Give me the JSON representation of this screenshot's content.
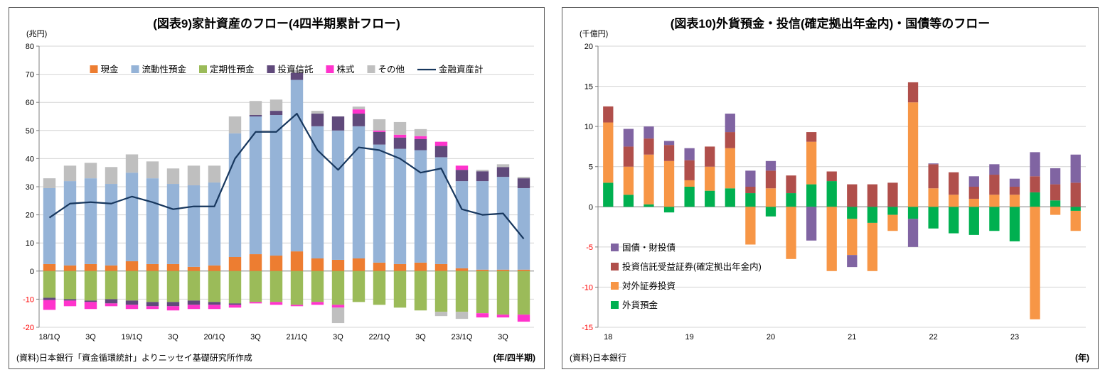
{
  "chart_data": [
    {
      "type": "bar",
      "title": "(図表9)家計資産のフロー(4四半期累計フロー)",
      "unit_label": "(兆円)",
      "x_axis_label": "(年/四半期)",
      "source": "(資料)日本銀行「資金循環統計」よりニッセイ基礎研究所作成",
      "ylim": [
        -20,
        80
      ],
      "ytick_step": 10,
      "grid": true,
      "legend_position": "top-inside",
      "negative_tick_color": "#FF0000",
      "categories": [
        "18/1Q",
        "18/2Q",
        "18/3Q",
        "18/4Q",
        "19/1Q",
        "19/2Q",
        "19/3Q",
        "19/4Q",
        "20/1Q",
        "20/2Q",
        "20/3Q",
        "20/4Q",
        "21/1Q",
        "21/2Q",
        "21/3Q",
        "21/4Q",
        "22/1Q",
        "22/2Q",
        "22/3Q",
        "22/4Q",
        "23/1Q",
        "23/2Q",
        "23/3Q",
        "23/4Q"
      ],
      "x_tick_labels": [
        {
          "index": 0,
          "label": "18/1Q"
        },
        {
          "index": 2,
          "label": "3Q"
        },
        {
          "index": 4,
          "label": "19/1Q"
        },
        {
          "index": 6,
          "label": "3Q"
        },
        {
          "index": 8,
          "label": "20/1Q"
        },
        {
          "index": 10,
          "label": "3Q"
        },
        {
          "index": 12,
          "label": "21/1Q"
        },
        {
          "index": 14,
          "label": "3Q"
        },
        {
          "index": 16,
          "label": "22/1Q"
        },
        {
          "index": 18,
          "label": "3Q"
        },
        {
          "index": 20,
          "label": "23/1Q"
        },
        {
          "index": 22,
          "label": "3Q"
        }
      ],
      "series": [
        {
          "key": "cash",
          "name": "現金",
          "color": "#ED7D31",
          "values": [
            2.5,
            2,
            2.5,
            2,
            3.5,
            2.5,
            2.5,
            1.5,
            2,
            5,
            6,
            5.5,
            7,
            4.5,
            4,
            4.5,
            3,
            2.5,
            3,
            2.5,
            1,
            0.5,
            0.5,
            0.5
          ]
        },
        {
          "key": "liquid-deposits",
          "name": "流動性預金",
          "color": "#95B3D7",
          "values": [
            27,
            30,
            30.5,
            29,
            31.5,
            30.5,
            28.5,
            29,
            29.5,
            44,
            49,
            50,
            61,
            47,
            46,
            47,
            42,
            41,
            40,
            38,
            31,
            31.5,
            33,
            29
          ]
        },
        {
          "key": "time-deposits",
          "name": "定期性預金",
          "color": "#9BBB59",
          "values": [
            -9.5,
            -10,
            -10.5,
            -10,
            -10.5,
            -11,
            -11,
            -10.5,
            -11,
            -11.5,
            -11,
            -11,
            -12,
            -11,
            -12,
            -11,
            -12,
            -13,
            -14,
            -14.5,
            -14.5,
            -15,
            -15.5,
            -15.5
          ]
        },
        {
          "key": "investment-trusts",
          "name": "投資信託",
          "color": "#604A7B",
          "values": [
            -0.8,
            -0.5,
            -0.5,
            -1.5,
            -1.5,
            -1.5,
            -1.5,
            -1.5,
            -1,
            -0.5,
            0.5,
            1.5,
            2.5,
            4.5,
            5,
            4.5,
            4.5,
            4,
            4,
            4,
            4,
            3.5,
            3.5,
            3.5
          ]
        },
        {
          "key": "stocks",
          "name": "株式",
          "color": "#FF33CC",
          "values": [
            -3.5,
            -2,
            -2.5,
            -1,
            -1.5,
            -1,
            -1.5,
            -1.5,
            -1.5,
            -1,
            -0.5,
            -1,
            -0.5,
            -1,
            -1,
            1.5,
            0.5,
            1,
            1,
            1.5,
            1.5,
            -1.5,
            -1,
            -2.5
          ]
        },
        {
          "key": "others",
          "name": "その他",
          "color": "#BFBFBF",
          "values": [
            3.5,
            5.5,
            5.5,
            6,
            6.5,
            6,
            5.5,
            7,
            6,
            6,
            5,
            4,
            1,
            1,
            -5.5,
            1,
            4,
            4.5,
            2.5,
            -1.5,
            -2.5,
            0.5,
            1,
            0.5
          ]
        }
      ],
      "line_series": {
        "key": "total-financial-assets",
        "name": "金融資産計",
        "color": "#17375E",
        "values": [
          19,
          24,
          24.5,
          24,
          26.5,
          24.5,
          22,
          23,
          23,
          40,
          49.5,
          49.5,
          56,
          43,
          36,
          44,
          43,
          40,
          35,
          36.5,
          22,
          20,
          20.5,
          11.5
        ]
      }
    },
    {
      "type": "bar",
      "title": "(図表10)外貨預金・投信(確定拠出年金内)・国債等のフロー",
      "unit_label": "(千億円)",
      "x_axis_label": "(年)",
      "source": "(資料)日本銀行",
      "ylim": [
        -15,
        20
      ],
      "ytick_step": 5,
      "grid": true,
      "legend_position": "left-inside",
      "negative_tick_color": "#FF0000",
      "categories": [
        "18/1Q",
        "18/2Q",
        "18/3Q",
        "18/4Q",
        "19/1Q",
        "19/2Q",
        "19/3Q",
        "19/4Q",
        "20/1Q",
        "20/2Q",
        "20/3Q",
        "20/4Q",
        "21/1Q",
        "21/2Q",
        "21/3Q",
        "21/4Q",
        "22/1Q",
        "22/2Q",
        "22/3Q",
        "22/4Q",
        "23/1Q",
        "23/2Q",
        "23/3Q",
        "23/4Q"
      ],
      "x_tick_labels": [
        {
          "index": 0,
          "label": "18"
        },
        {
          "index": 4,
          "label": "19"
        },
        {
          "index": 8,
          "label": "20"
        },
        {
          "index": 12,
          "label": "21"
        },
        {
          "index": 16,
          "label": "22"
        },
        {
          "index": 20,
          "label": "23"
        }
      ],
      "series": [
        {
          "key": "foreign-currency-deposits",
          "name": "外貨預金",
          "color": "#00B050",
          "values": [
            3,
            1.5,
            0.3,
            -0.7,
            2.5,
            2,
            2.3,
            1.7,
            -1.2,
            1.7,
            2.8,
            3.2,
            -1.5,
            -2,
            -1,
            -1.5,
            -2.7,
            -3.3,
            -3.5,
            -3,
            -4.3,
            1.8,
            0.8,
            -0.5
          ]
        },
        {
          "key": "outward-securities-investment",
          "name": "対外証券投資",
          "color": "#F79646",
          "values": [
            7.5,
            3.5,
            6.2,
            5.7,
            0.8,
            3,
            5,
            -4.7,
            2.3,
            -6.5,
            5.3,
            -8,
            -4.5,
            -6,
            -2,
            13,
            2.3,
            1.5,
            1,
            1.5,
            1.5,
            -14,
            -1,
            -2.5
          ]
        },
        {
          "key": "investment-trust-certificates-dc",
          "name": "投資信託受益証券(確定拠出年金内)",
          "color": "#B04F4B",
          "values": [
            2,
            2.5,
            2,
            2,
            2.5,
            2.5,
            2,
            0.8,
            2.2,
            2.2,
            1.2,
            1.2,
            2.8,
            2.8,
            3,
            2.5,
            3,
            2.8,
            1.5,
            2.5,
            1,
            2,
            2,
            3
          ]
        },
        {
          "key": "government-bonds",
          "name": "国債・財投債",
          "color": "#8064A2",
          "values": [
            0,
            2.2,
            1.5,
            0.5,
            1.5,
            0,
            2.3,
            2,
            1.2,
            0,
            -4.2,
            0,
            -1.5,
            0,
            0,
            -3.5,
            0.1,
            0,
            1.3,
            1.3,
            1,
            3,
            2,
            3.5
          ]
        }
      ]
    }
  ]
}
